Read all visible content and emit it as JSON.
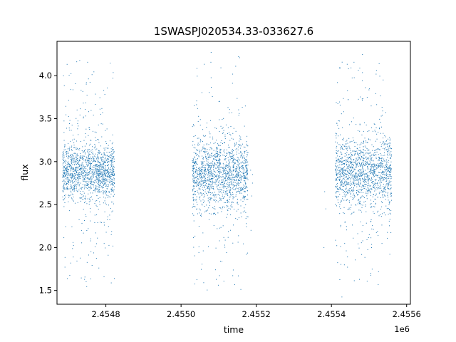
{
  "chart_data": {
    "type": "scatter",
    "title": "1SWASPJ020534.33-033627.6",
    "xlabel": "time",
    "ylabel": "flux",
    "x_offset_label": "1e6",
    "xlim": [
      2454670,
      2455610
    ],
    "ylim": [
      1.34,
      4.4
    ],
    "x_ticks": [
      2454800,
      2455000,
      2455200,
      2455400,
      2455600
    ],
    "x_tick_labels": [
      "2.4548",
      "2.4550",
      "2.4552",
      "2.4554",
      "2.4556"
    ],
    "y_ticks": [
      1.5,
      2.0,
      2.5,
      3.0,
      3.5,
      4.0
    ],
    "y_tick_labels": [
      "1.5",
      "2.0",
      "2.5",
      "3.0",
      "3.5",
      "4.0"
    ],
    "marker_color": "#1f77b4",
    "grid": false,
    "series": [
      {
        "x": [
          2454690,
          2454700,
          2454710,
          2454720,
          2454730,
          2454740,
          2454750,
          2454760,
          2454770,
          2454780,
          2454790,
          2454800,
          2454810,
          2454820,
          2455035,
          2455045,
          2455055,
          2455065,
          2455075,
          2455085,
          2455095,
          2455105,
          2455115,
          2455125,
          2455135,
          2455145,
          2455155,
          2455165,
          2455175,
          2455415,
          2455425,
          2455435,
          2455445,
          2455455,
          2455465,
          2455475,
          2455485,
          2455495,
          2455505,
          2455515,
          2455525,
          2455535,
          2455545,
          2455555
        ],
        "y": [
          2.88,
          2.91,
          2.85,
          2.93,
          2.87,
          2.9,
          2.84,
          2.92,
          2.88,
          2.86,
          2.91,
          2.89,
          2.87,
          2.9,
          2.78,
          2.85,
          2.82,
          2.9,
          2.8,
          2.86,
          2.83,
          2.88,
          2.81,
          2.87,
          2.84,
          2.89,
          2.82,
          2.86,
          2.85,
          2.86,
          2.9,
          2.84,
          2.92,
          2.87,
          2.85,
          2.91,
          2.88,
          2.83,
          2.9,
          2.86,
          2.93,
          2.87,
          2.89,
          2.85
        ]
      }
    ],
    "segments": [
      {
        "x_start": 2454685,
        "x_end": 2454823,
        "center": 2.88,
        "spread": 0.16
      },
      {
        "x_start": 2455030,
        "x_end": 2455178,
        "center": 2.85,
        "spread": 0.2
      },
      {
        "x_start": 2455410,
        "x_end": 2455560,
        "center": 2.88,
        "spread": 0.2
      }
    ]
  }
}
